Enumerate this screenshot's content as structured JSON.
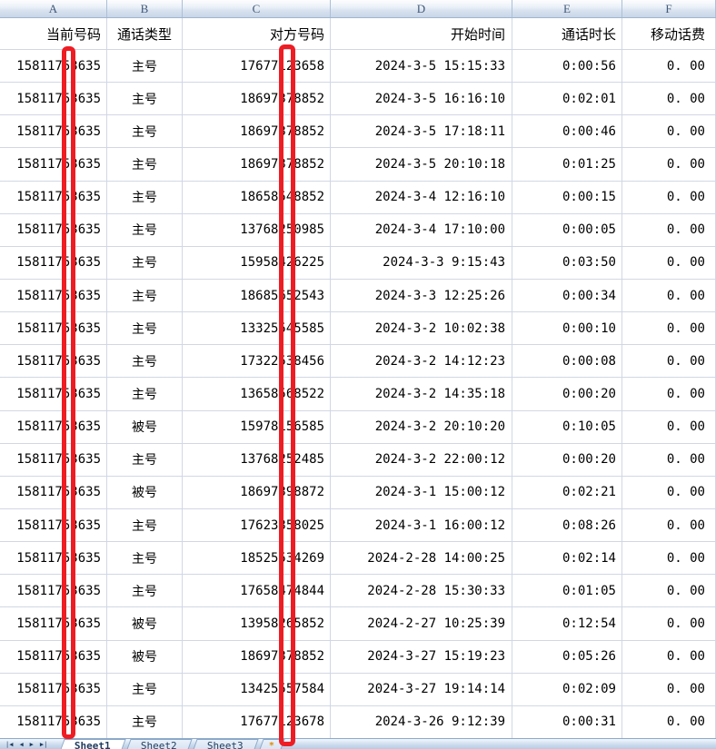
{
  "sheet": {
    "column_headers": [
      "A",
      "B",
      "C",
      "D",
      "E",
      "F"
    ],
    "header_row": {
      "A": "当前号码",
      "B": "通话类型",
      "C": "对方号码",
      "D": "开始时间",
      "E": "通话时长",
      "F": "移动话费"
    },
    "rows": [
      {
        "current": "15811753635",
        "type": "主号",
        "other": "17677123658",
        "start": "2024-3-5 15:15:33",
        "duration": "0:00:56",
        "fee": "0. 00"
      },
      {
        "current": "15811753635",
        "type": "主号",
        "other": "18697378852",
        "start": "2024-3-5 16:16:10",
        "duration": "0:02:01",
        "fee": "0. 00"
      },
      {
        "current": "15811753635",
        "type": "主号",
        "other": "18697378852",
        "start": "2024-3-5 17:18:11",
        "duration": "0:00:46",
        "fee": "0. 00"
      },
      {
        "current": "15811753635",
        "type": "主号",
        "other": "18697378852",
        "start": "2024-3-5 20:10:18",
        "duration": "0:01:25",
        "fee": "0. 00"
      },
      {
        "current": "15811753635",
        "type": "主号",
        "other": "18658548852",
        "start": "2024-3-4 12:16:10",
        "duration": "0:00:15",
        "fee": "0. 00"
      },
      {
        "current": "15811753635",
        "type": "主号",
        "other": "13768250985",
        "start": "2024-3-4 17:10:00",
        "duration": "0:00:05",
        "fee": "0. 00"
      },
      {
        "current": "15811753635",
        "type": "主号",
        "other": "15958426225",
        "start": "2024-3-3 9:15:43",
        "duration": "0:03:50",
        "fee": "0. 00"
      },
      {
        "current": "15811753635",
        "type": "主号",
        "other": "18685652543",
        "start": "2024-3-3 12:25:26",
        "duration": "0:00:34",
        "fee": "0. 00"
      },
      {
        "current": "15811753635",
        "type": "主号",
        "other": "13325545585",
        "start": "2024-3-2 10:02:38",
        "duration": "0:00:10",
        "fee": "0. 00"
      },
      {
        "current": "15811753635",
        "type": "主号",
        "other": "17322538456",
        "start": "2024-3-2 14:12:23",
        "duration": "0:00:08",
        "fee": "0. 00"
      },
      {
        "current": "15811753635",
        "type": "主号",
        "other": "13658568522",
        "start": "2024-3-2 14:35:18",
        "duration": "0:00:20",
        "fee": "0. 00"
      },
      {
        "current": "15811753635",
        "type": "被号",
        "other": "15978156585",
        "start": "2024-3-2 20:10:20",
        "duration": "0:10:05",
        "fee": "0. 00"
      },
      {
        "current": "15811753635",
        "type": "主号",
        "other": "13768252485",
        "start": "2024-3-2 22:00:12",
        "duration": "0:00:20",
        "fee": "0. 00"
      },
      {
        "current": "15811753635",
        "type": "被号",
        "other": "18697398872",
        "start": "2024-3-1 15:00:12",
        "duration": "0:02:21",
        "fee": "0. 00"
      },
      {
        "current": "15811753635",
        "type": "主号",
        "other": "17623358025",
        "start": "2024-3-1 16:00:12",
        "duration": "0:08:26",
        "fee": "0. 00"
      },
      {
        "current": "15811753635",
        "type": "主号",
        "other": "18525534269",
        "start": "2024-2-28 14:00:25",
        "duration": "0:02:14",
        "fee": "0. 00"
      },
      {
        "current": "15811753635",
        "type": "主号",
        "other": "17658474844",
        "start": "2024-2-28 15:30:33",
        "duration": "0:01:05",
        "fee": "0. 00"
      },
      {
        "current": "15811753635",
        "type": "被号",
        "other": "13958265852",
        "start": "2024-2-27 10:25:39",
        "duration": "0:12:54",
        "fee": "0. 00"
      },
      {
        "current": "15811753635",
        "type": "被号",
        "other": "18697378852",
        "start": "2024-3-27 15:19:23",
        "duration": "0:05:26",
        "fee": "0. 00"
      },
      {
        "current": "15811753635",
        "type": "主号",
        "other": "13425557584",
        "start": "2024-3-27 19:14:14",
        "duration": "0:02:09",
        "fee": "0. 00"
      },
      {
        "current": "15811753635",
        "type": "主号",
        "other": "17677123678",
        "start": "2024-3-26 9:12:39",
        "duration": "0:00:31",
        "fee": "0. 00"
      }
    ],
    "tabs": {
      "labels": [
        "Sheet1",
        "Sheet2",
        "Sheet3"
      ],
      "active": "Sheet1",
      "insert_label": "*"
    },
    "nav": {
      "first": "|◀",
      "prev": "◀",
      "next": "▶",
      "last": "▶|"
    },
    "annotations": {
      "redaction_color": "#ee1d23",
      "redacted_columns": [
        "A",
        "C"
      ]
    }
  }
}
